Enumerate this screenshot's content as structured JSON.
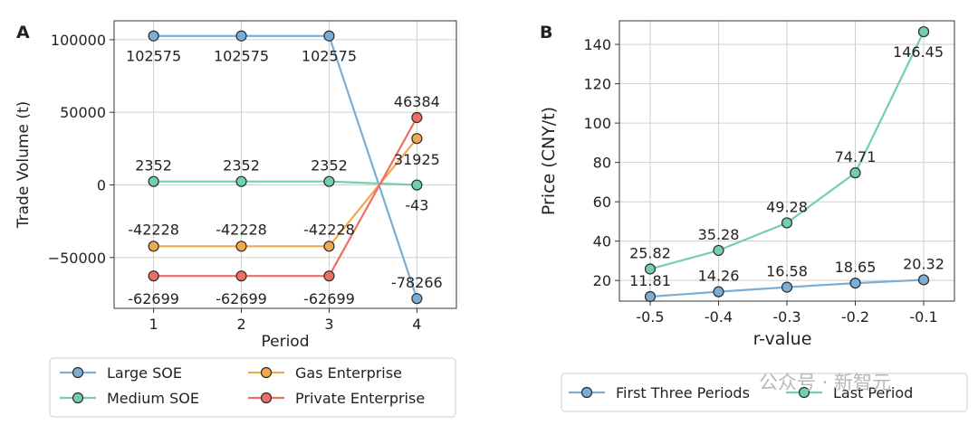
{
  "chart_data": [
    {
      "panel": "A",
      "type": "line",
      "xlabel": "Period",
      "ylabel": "Trade Volume (t)",
      "x": [
        1,
        2,
        3,
        4
      ],
      "xticks": [
        "1",
        "2",
        "3",
        "4"
      ],
      "xlim": [
        0.55,
        4.45
      ],
      "ylim": [
        -85000,
        113000
      ],
      "yticks": [
        -50000,
        0,
        50000,
        100000
      ],
      "ytick_labels": [
        "−50000",
        "0",
        "50000",
        "100000"
      ],
      "grid": true,
      "legend_position": "bottom, below plot",
      "series": [
        {
          "name": "Large SOE",
          "color": "#7aaed6",
          "values": [
            102575,
            102575,
            102575,
            -78266
          ],
          "labels": [
            "102575",
            "102575",
            "102575",
            "-78266"
          ]
        },
        {
          "name": "Medium SOE",
          "color": "#72cfae",
          "values": [
            2352,
            2352,
            2352,
            -43
          ],
          "labels": [
            "2352",
            "2352",
            "2352",
            "-43"
          ]
        },
        {
          "name": "Gas Enterprise",
          "color": "#f2a84e",
          "values": [
            -42228,
            -42228,
            -42228,
            31925
          ],
          "labels": [
            "-42228",
            "-42228",
            "-42228",
            "31925"
          ]
        },
        {
          "name": "Private Enterprise",
          "color": "#ef6d63",
          "values": [
            -62699,
            -62699,
            -62699,
            46384
          ],
          "labels": [
            "-62699",
            "-62699",
            "-62699",
            "46384"
          ]
        }
      ]
    },
    {
      "panel": "B",
      "type": "line",
      "xlabel": "r-value",
      "ylabel": "Price (CNY/t)",
      "x": [
        -0.5,
        -0.4,
        -0.3,
        -0.2,
        -0.1
      ],
      "xticks": [
        "-0.5",
        "-0.4",
        "-0.3",
        "-0.2",
        "-0.1"
      ],
      "xlim": [
        -0.545,
        -0.055
      ],
      "ylim": [
        9.5,
        152
      ],
      "yticks": [
        20,
        40,
        60,
        80,
        100,
        120,
        140
      ],
      "ytick_labels": [
        "20",
        "40",
        "60",
        "80",
        "100",
        "120",
        "140"
      ],
      "grid": true,
      "legend_position": "bottom, below plot",
      "series": [
        {
          "name": "First Three Periods",
          "color": "#7aaed6",
          "values": [
            11.81,
            14.26,
            16.58,
            18.65,
            20.32
          ],
          "labels": [
            "11.81",
            "14.26",
            "16.58",
            "18.65",
            "20.32"
          ]
        },
        {
          "name": "Last Period",
          "color": "#72cfae",
          "values": [
            25.82,
            35.28,
            49.28,
            74.71,
            146.45
          ],
          "labels": [
            "25.82",
            "35.28",
            "49.28",
            "74.71",
            "146.45"
          ]
        }
      ]
    }
  ],
  "watermark": "公众号 · 新智元"
}
